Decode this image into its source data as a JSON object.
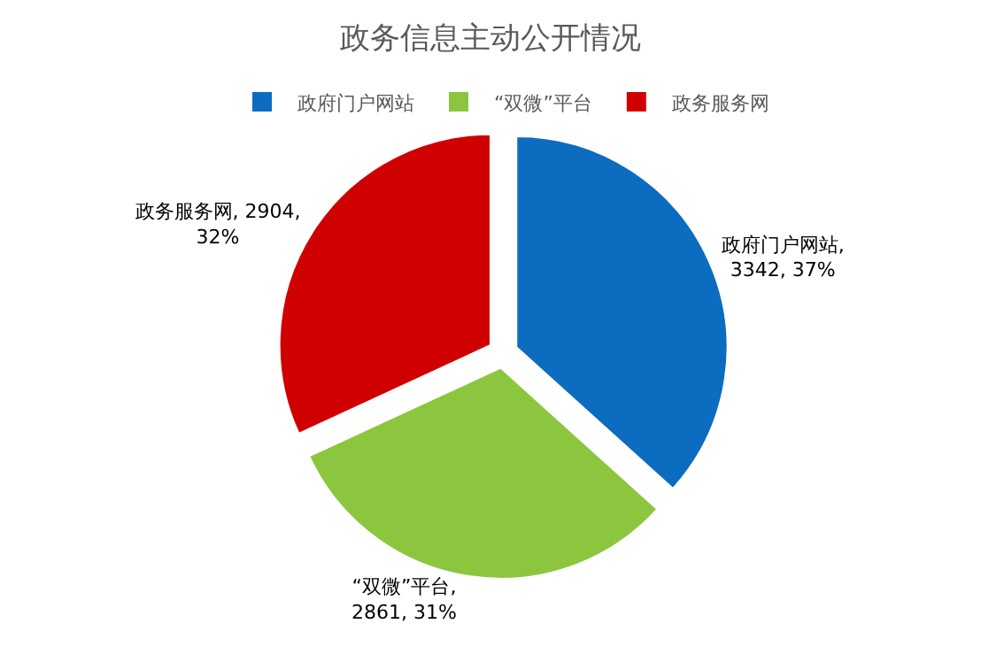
{
  "chart_data": {
    "type": "pie",
    "title": "政务信息主动公开情况",
    "categories": [
      "政府门户网站",
      "“双微”平台",
      "政务服务网"
    ],
    "values": [
      3342,
      2861,
      2904
    ],
    "colors": [
      "#0b6cc0",
      "#8cc63f",
      "#d00000"
    ],
    "value_labels": [
      "政府门户网站,\n3342, 37%",
      "“双微”平台,\n2861, 31%",
      "政务服务网, 2904,\n32%"
    ],
    "legend": "top"
  }
}
